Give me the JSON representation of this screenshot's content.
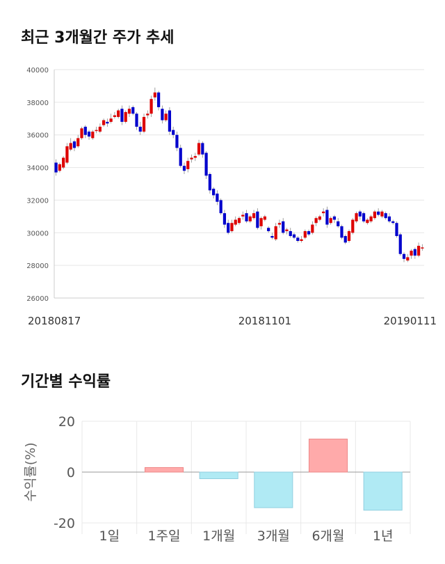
{
  "titles": {
    "price_trend": "최근 3개월간 주가 추세",
    "returns": "기간별 수익률"
  },
  "chart_data": [
    {
      "type": "candlestick",
      "y_ticks": [
        "40000",
        "38000",
        "36000",
        "34000",
        "32000",
        "30000",
        "28000",
        "26000"
      ],
      "x_labels": [
        "20180817",
        "20181101",
        "20190111"
      ],
      "ylim": [
        26000,
        40000
      ],
      "colors": {
        "up": "#dd0000",
        "down": "#0000cc"
      },
      "closes": [
        33700,
        34200,
        34600,
        35300,
        35500,
        35200,
        35800,
        36400,
        36000,
        35900,
        36200,
        36300,
        36500,
        36900,
        36700,
        37000,
        37200,
        37500,
        36800,
        37400,
        37600,
        37300,
        36500,
        36200,
        37100,
        37300,
        38200,
        38600,
        37700,
        36900,
        37300,
        36200,
        36000,
        35200,
        34100,
        33800,
        34400,
        34600,
        34700,
        35500,
        34800,
        33500,
        32600,
        32300,
        31900,
        31200,
        30500,
        30000,
        30600,
        30800,
        30900,
        31100,
        30700,
        31000,
        31200,
        30300,
        30900,
        31000,
        30100,
        29700,
        30400,
        30600,
        30000,
        30200,
        29800,
        29700,
        29500,
        29600,
        30100,
        29900,
        30500,
        30900,
        31000,
        31300,
        30500,
        30900,
        30800,
        30400,
        29700,
        29400,
        30100,
        30800,
        31200,
        31000,
        30700,
        30800,
        31000,
        31300,
        31100,
        31300,
        30900,
        30700,
        30600,
        29800,
        28700,
        28400,
        28500,
        28900,
        28600,
        29200,
        29100
      ],
      "opens": [
        34300,
        33800,
        34000,
        34300,
        35100,
        35600,
        35300,
        35800,
        36500,
        36200,
        35800,
        36300,
        36200,
        36600,
        36800,
        36800,
        37100,
        37100,
        37600,
        36800,
        37300,
        37700,
        37300,
        36500,
        36200,
        37200,
        37300,
        38300,
        38600,
        37600,
        36900,
        37500,
        36300,
        36000,
        35200,
        34100,
        33900,
        34500,
        34600,
        34800,
        35500,
        34900,
        33600,
        32700,
        32400,
        32000,
        31200,
        30600,
        30100,
        30500,
        30600,
        31000,
        31200,
        30700,
        30900,
        31300,
        30400,
        30800,
        30300,
        29800,
        29600,
        30500,
        30700,
        30100,
        30100,
        29900,
        29700,
        29500,
        29700,
        30100,
        30000,
        30600,
        30800,
        31200,
        31400,
        30600,
        31000,
        30700,
        30400,
        29800,
        29500,
        30000,
        30700,
        31300,
        31200,
        30600,
        30700,
        30900,
        31300,
        31000,
        31200,
        31000,
        30700,
        30600,
        29900,
        28700,
        28300,
        28600,
        29000,
        28600,
        29100
      ],
      "highs": [
        34500,
        34300,
        34700,
        35500,
        35800,
        35700,
        36000,
        36500,
        36600,
        36300,
        36300,
        36500,
        36700,
        37000,
        37000,
        37300,
        37400,
        37600,
        37800,
        37500,
        37800,
        37800,
        37400,
        36800,
        37300,
        37500,
        38400,
        38900,
        38700,
        37800,
        37500,
        37700,
        36500,
        36200,
        35400,
        34300,
        34600,
        34800,
        34900,
        35700,
        35600,
        35000,
        33700,
        32800,
        32600,
        32100,
        31400,
        30800,
        30800,
        31000,
        31000,
        31300,
        31400,
        31100,
        31400,
        31500,
        31000,
        31100,
        30400,
        30000,
        30600,
        30800,
        30900,
        30300,
        30300,
        30000,
        29800,
        29800,
        30200,
        30200,
        30700,
        31000,
        31100,
        31500,
        31600,
        31000,
        31100,
        30900,
        30500,
        29900,
        30200,
        30900,
        31300,
        31400,
        31300,
        30900,
        31100,
        31400,
        31500,
        31400,
        31300,
        31200,
        30800,
        30700,
        30000,
        28800,
        28700,
        29000,
        29100,
        29400,
        29300
      ],
      "lows": [
        33500,
        33700,
        33900,
        34200,
        35000,
        35000,
        35200,
        35700,
        35800,
        35700,
        35700,
        36100,
        36100,
        36500,
        36500,
        36700,
        37000,
        37000,
        36600,
        36700,
        37100,
        37200,
        36300,
        36000,
        36100,
        37000,
        37100,
        38100,
        37500,
        36700,
        36800,
        36000,
        35800,
        35000,
        34000,
        33600,
        33700,
        34300,
        34400,
        34700,
        34600,
        33300,
        32400,
        32100,
        31700,
        31100,
        30300,
        29900,
        30000,
        30400,
        30500,
        30800,
        30600,
        30600,
        30800,
        30200,
        30200,
        30700,
        30000,
        29600,
        29500,
        30300,
        29900,
        29900,
        29700,
        29600,
        29400,
        29400,
        29600,
        29800,
        29900,
        30400,
        30700,
        31000,
        30300,
        30500,
        30600,
        30300,
        29600,
        29300,
        29400,
        29900,
        30600,
        30800,
        30600,
        30500,
        30600,
        30800,
        31000,
        30900,
        30800,
        30600,
        30500,
        29700,
        28600,
        28200,
        28200,
        28400,
        28400,
        28500,
        28900
      ]
    },
    {
      "type": "bar",
      "categories": [
        "1일",
        "1주일",
        "1개월",
        "3개월",
        "6개월",
        "1년"
      ],
      "values": [
        0,
        1.8,
        -2.6,
        -14,
        13,
        -15
      ],
      "ylim": [
        -20,
        20
      ],
      "y_ticks": [
        "20",
        "0",
        "-20"
      ],
      "ylabel": "수익률(%)",
      "colors": {
        "positive": "#ffaaaa",
        "positive_border": "#ee8888",
        "negative": "#b0eaf4",
        "negative_border": "#90cfe0"
      }
    }
  ]
}
